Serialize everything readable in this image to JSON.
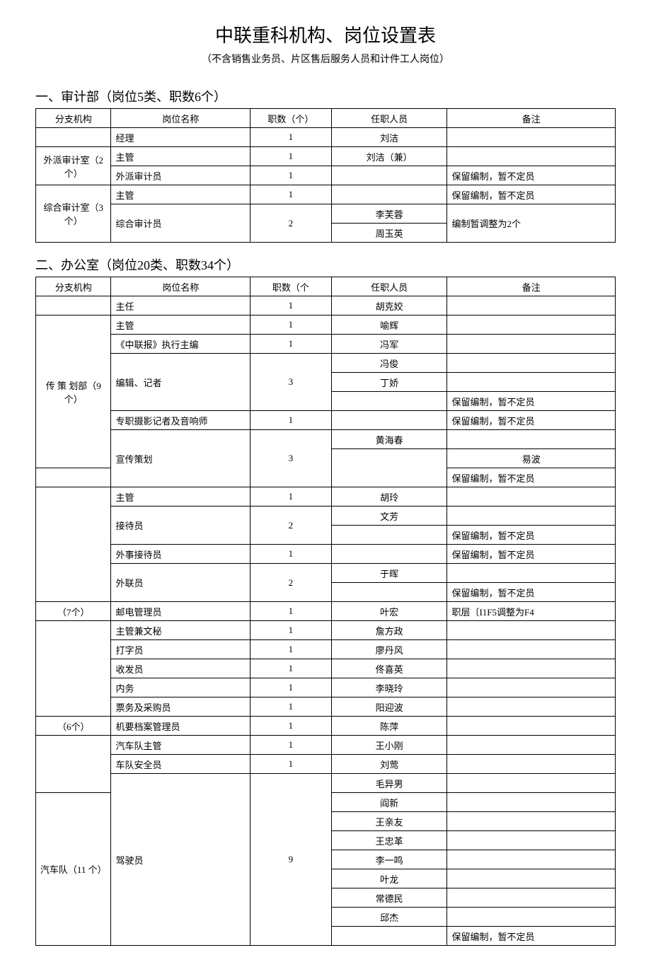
{
  "title": "中联重科机构、岗位设置表",
  "subtitle": "（不含销售业务员、片区售后服务人员和计件工人岗位）",
  "section1": {
    "header": "一、审计部（岗位5类、职数6个）",
    "columns": [
      "分支机构",
      "岗位名称",
      "职数（个）",
      "任职人员",
      "备注"
    ],
    "rows": [
      {
        "branch": "",
        "post": "经理",
        "count": "1",
        "person": "刘洁",
        "note": ""
      },
      {
        "branch": "外派审计室（2个）",
        "branch_span": 2,
        "post": "主管",
        "count": "1",
        "person": "刘洁（兼）",
        "note": ""
      },
      {
        "post": "外派审计员",
        "count": "1",
        "person": "",
        "note": "保留编制，暂不定员"
      },
      {
        "branch": "综合审计室（3个）",
        "branch_span": 3,
        "post": "主管",
        "count": "1",
        "person": "",
        "note": "保留编制，暂不定员"
      },
      {
        "post": "综合审计员",
        "post_span": 2,
        "count": "2",
        "count_span": 2,
        "person": "李芙蓉",
        "note": "编制暂调整为2个",
        "note_span": 2
      },
      {
        "person": "周玉英"
      }
    ]
  },
  "section2": {
    "header": "二、办公室（岗位20类、职数34个）",
    "columns": [
      "分支机构",
      "岗位名称",
      "职数（个",
      "任职人员",
      "备注"
    ],
    "rows": [
      {
        "branch": "",
        "post": "主任",
        "count": "1",
        "person": "胡克姣",
        "note": ""
      },
      {
        "branch": "传 策 划部（9个）",
        "branch_span": 8,
        "post": "主管",
        "count": "1",
        "person": "喻辉",
        "note": ""
      },
      {
        "post": "《中联报》执行主编",
        "count": "1",
        "person": "冯军",
        "note": ""
      },
      {
        "post": "编辑、记者",
        "post_span": 3,
        "count": "3",
        "count_span": 3,
        "person": "冯俊",
        "note": ""
      },
      {
        "person": "丁娇",
        "note": ""
      },
      {
        "person": "",
        "note": "保留编制，暂不定员"
      },
      {
        "post": "专职摄影记者及音响师",
        "count": "1",
        "person": "",
        "note": "保留编制，暂不定员"
      },
      {
        "post": "宣传策划",
        "post_span": 3,
        "count": "3",
        "count_span": 3,
        "person": "黄海春",
        "note": ""
      },
      {
        "branch": "",
        "branch_span": 2,
        "person": "易波",
        "note": ""
      },
      {
        "person": "",
        "note": "保留编制，暂不定员"
      },
      {
        "branch": "",
        "branch_span": 6,
        "post": "主管",
        "count": "1",
        "person": "胡玲",
        "note": ""
      },
      {
        "post": "接待员",
        "post_span": 2,
        "count": "2",
        "count_span": 2,
        "person": "文芳",
        "note": ""
      },
      {
        "person": "",
        "note": "保留编制，暂不定员"
      },
      {
        "post": "外事接待员",
        "count": "1",
        "person": "",
        "note": "保留编制，暂不定员"
      },
      {
        "post": "外联员",
        "post_span": 2,
        "count": "2",
        "count_span": 2,
        "person": "于晖",
        "note": ""
      },
      {
        "person": "",
        "note": "保留编制，暂不定员"
      },
      {
        "branch": "（7个）",
        "post": "邮电管理员",
        "count": "1",
        "person": "叶宏",
        "note": "职层〔I1F5调整为F4"
      },
      {
        "branch": "",
        "branch_span": 5,
        "post": "主管兼文秘",
        "count": "1",
        "person": "詹方政",
        "note": ""
      },
      {
        "post": "打字员",
        "count": "1",
        "person": "廖丹风",
        "note": ""
      },
      {
        "post": "收发员",
        "count": "1",
        "person": "佟喜英",
        "note": ""
      },
      {
        "post": "内务",
        "count": "1",
        "person": "李晓玲",
        "note": ""
      },
      {
        "post": "票务及采购员",
        "count": "1",
        "person": "阳迎波",
        "note": ""
      },
      {
        "branch": "（6个）",
        "post": "机要档案管理员",
        "count": "1",
        "person": "陈萍",
        "note": ""
      },
      {
        "branch": "",
        "branch_span": 3,
        "post": "汽车队主管",
        "count": "1",
        "person": "王小刚",
        "note": ""
      },
      {
        "post": "车队安全员",
        "count": "1",
        "person": "刘莺",
        "note": ""
      },
      {
        "post": "驾驶员",
        "post_span": 9,
        "count": "9",
        "count_span": 9,
        "person": "毛异男",
        "note": ""
      },
      {
        "branch": "汽车队（11 个）",
        "branch_span": 8,
        "person": "阎新",
        "note": ""
      },
      {
        "person": "王亲友",
        "note": ""
      },
      {
        "person": "王忠革",
        "note": ""
      },
      {
        "person": "李一鸣",
        "note": ""
      },
      {
        "person": "叶龙",
        "note": ""
      },
      {
        "person": "常德民",
        "note": ""
      },
      {
        "person": "邱杰",
        "note": ""
      },
      {
        "person": "",
        "note": "保留编制，暂不定员"
      }
    ]
  }
}
